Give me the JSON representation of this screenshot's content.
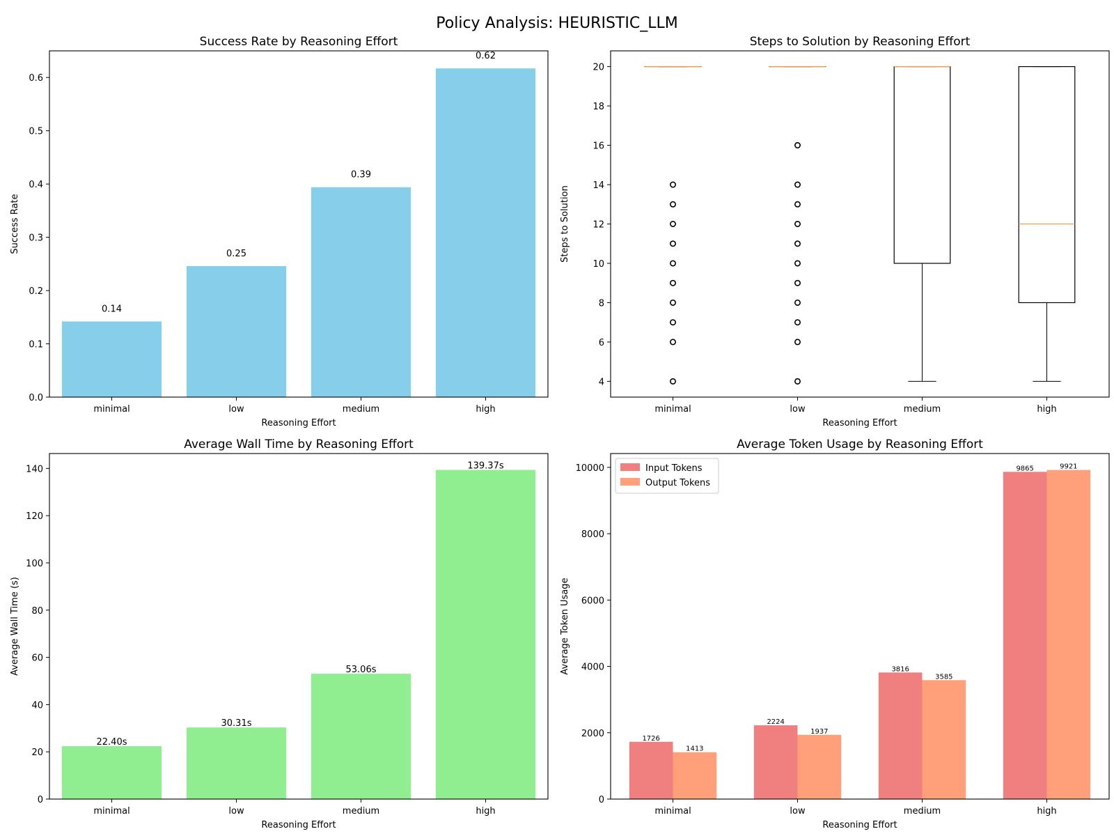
{
  "suptitle": "Policy Analysis: HEURISTIC_LLM",
  "chart_data": [
    {
      "type": "bar",
      "title": "Success Rate by Reasoning Effort",
      "xlabel": "Reasoning Effort",
      "ylabel": "Success Rate",
      "categories": [
        "minimal",
        "low",
        "medium",
        "high"
      ],
      "values": [
        0.142,
        0.246,
        0.394,
        0.617
      ],
      "value_labels": [
        "0.14",
        "0.25",
        "0.39",
        "0.62"
      ],
      "ylim": [
        0,
        0.65
      ],
      "yticks": [
        0.0,
        0.1,
        0.2,
        0.3,
        0.4,
        0.5,
        0.6
      ],
      "ytick_labels": [
        "0.0",
        "0.1",
        "0.2",
        "0.3",
        "0.4",
        "0.5",
        "0.6"
      ],
      "color": "#87CEEB"
    },
    {
      "type": "box",
      "title": "Steps to Solution by Reasoning Effort",
      "xlabel": "Reasoning Effort",
      "ylabel": "Steps to Solution",
      "categories": [
        "minimal",
        "low",
        "medium",
        "high"
      ],
      "ylim": [
        3.2,
        20.8
      ],
      "yticks": [
        4,
        6,
        8,
        10,
        12,
        14,
        16,
        18,
        20
      ],
      "ytick_labels": [
        "4",
        "6",
        "8",
        "10",
        "12",
        "14",
        "16",
        "18",
        "20"
      ],
      "boxes": [
        {
          "q1": 20,
          "median": 20,
          "q3": 20,
          "whisker_low": 20,
          "whisker_high": 20,
          "outliers": [
            4,
            6,
            7,
            8,
            9,
            10,
            11,
            12,
            13,
            14
          ]
        },
        {
          "q1": 20,
          "median": 20,
          "q3": 20,
          "whisker_low": 20,
          "whisker_high": 20,
          "outliers": [
            4,
            6,
            7,
            8,
            9,
            10,
            11,
            12,
            13,
            14,
            16
          ]
        },
        {
          "q1": 10,
          "median": 20,
          "q3": 20,
          "whisker_low": 4,
          "whisker_high": 20,
          "outliers": []
        },
        {
          "q1": 8,
          "median": 12,
          "q3": 20,
          "whisker_low": 4,
          "whisker_high": 20,
          "outliers": []
        }
      ]
    },
    {
      "type": "bar",
      "title": "Average Wall Time by Reasoning Effort",
      "xlabel": "Reasoning Effort",
      "ylabel": "Average Wall Time (s)",
      "categories": [
        "minimal",
        "low",
        "medium",
        "high"
      ],
      "values": [
        22.4,
        30.31,
        53.06,
        139.37
      ],
      "value_labels": [
        "22.40s",
        "30.31s",
        "53.06s",
        "139.37s"
      ],
      "ylim": [
        0,
        146.3
      ],
      "yticks": [
        0,
        20,
        40,
        60,
        80,
        100,
        120,
        140
      ],
      "ytick_labels": [
        "0",
        "20",
        "40",
        "60",
        "80",
        "100",
        "120",
        "140"
      ],
      "color": "#90EE90"
    },
    {
      "type": "bar",
      "title": "Average Token Usage by Reasoning Effort",
      "xlabel": "Reasoning Effort",
      "ylabel": "Average Token Usage",
      "categories": [
        "minimal",
        "low",
        "medium",
        "high"
      ],
      "ylim": [
        0,
        10417
      ],
      "yticks": [
        0,
        2000,
        4000,
        6000,
        8000,
        10000
      ],
      "ytick_labels": [
        "0",
        "2000",
        "4000",
        "6000",
        "8000",
        "10000"
      ],
      "legend": "top-left",
      "series": [
        {
          "name": "Input Tokens",
          "values": [
            1726,
            2224,
            3816,
            9865
          ],
          "value_labels": [
            "1726",
            "2224",
            "3816",
            "9865"
          ],
          "color": "#F08080"
        },
        {
          "name": "Output Tokens",
          "values": [
            1413,
            1937,
            3585,
            9921
          ],
          "value_labels": [
            "1413",
            "1937",
            "3585",
            "9921"
          ],
          "color": "#FFA07A"
        }
      ]
    }
  ]
}
